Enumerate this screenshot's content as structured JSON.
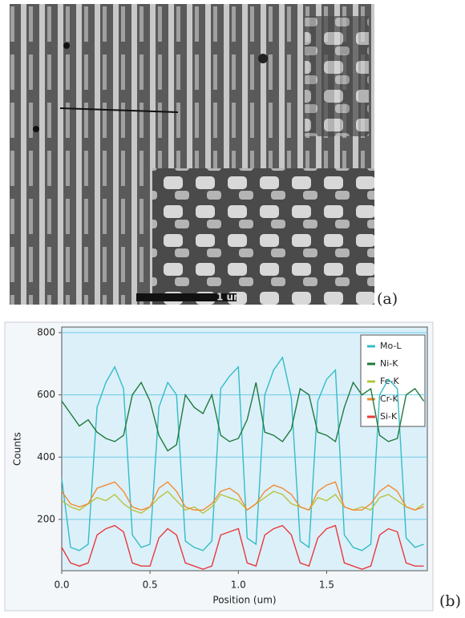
{
  "panel_labels": [
    "(a)",
    "(b)"
  ],
  "image": {
    "scale_bar_label": "1 um"
  },
  "chart_data": {
    "type": "line",
    "xlabel": "Position (um)",
    "ylabel": "Counts",
    "x": [
      0,
      0.05,
      0.1,
      0.15,
      0.2,
      0.25,
      0.3,
      0.35,
      0.4,
      0.45,
      0.5,
      0.55,
      0.6,
      0.65,
      0.7,
      0.75,
      0.8,
      0.85,
      0.9,
      0.95,
      1.0,
      1.05,
      1.1,
      1.15,
      1.2,
      1.25,
      1.3,
      1.35,
      1.4,
      1.45,
      1.5,
      1.55,
      1.6,
      1.65,
      1.7,
      1.75,
      1.8,
      1.85,
      1.9,
      1.95,
      2.0,
      2.05
    ],
    "series": [
      {
        "name": "Mo-L",
        "color": "#35bcc4",
        "values": [
          330,
          110,
          100,
          120,
          560,
          640,
          690,
          620,
          150,
          110,
          120,
          560,
          640,
          600,
          130,
          110,
          100,
          130,
          620,
          660,
          690,
          140,
          120,
          600,
          680,
          720,
          590,
          130,
          110,
          580,
          650,
          680,
          150,
          110,
          100,
          120,
          600,
          650,
          620,
          140,
          110,
          120
        ]
      },
      {
        "name": "Ni-K",
        "color": "#1f7a3c",
        "values": [
          580,
          540,
          500,
          520,
          480,
          460,
          450,
          470,
          600,
          640,
          580,
          470,
          420,
          440,
          600,
          560,
          540,
          600,
          470,
          450,
          460,
          520,
          640,
          480,
          470,
          450,
          490,
          620,
          600,
          480,
          470,
          450,
          560,
          640,
          600,
          620,
          470,
          450,
          460,
          600,
          620,
          580
        ]
      },
      {
        "name": "Fe-K",
        "color": "#b7c43c",
        "values": [
          260,
          240,
          230,
          250,
          270,
          260,
          280,
          250,
          230,
          220,
          240,
          270,
          290,
          260,
          230,
          240,
          220,
          240,
          280,
          270,
          260,
          230,
          250,
          270,
          290,
          280,
          250,
          240,
          230,
          270,
          260,
          280,
          240,
          230,
          240,
          230,
          270,
          280,
          260,
          240,
          230,
          250
        ]
      },
      {
        "name": "Cr-K",
        "color": "#f28a32",
        "values": [
          290,
          250,
          240,
          250,
          300,
          310,
          320,
          290,
          240,
          230,
          240,
          300,
          320,
          290,
          240,
          230,
          230,
          250,
          290,
          300,
          280,
          230,
          250,
          290,
          310,
          300,
          280,
          240,
          230,
          290,
          310,
          320,
          240,
          230,
          230,
          250,
          290,
          310,
          290,
          240,
          230,
          240
        ]
      },
      {
        "name": "Si-K",
        "color": "#e8393a",
        "values": [
          110,
          60,
          50,
          60,
          150,
          170,
          180,
          160,
          60,
          50,
          50,
          140,
          170,
          150,
          60,
          50,
          40,
          50,
          150,
          160,
          170,
          60,
          50,
          150,
          170,
          180,
          150,
          60,
          50,
          140,
          170,
          180,
          60,
          50,
          40,
          50,
          150,
          170,
          160,
          60,
          50,
          50
        ]
      }
    ],
    "xlim": [
      0,
      2.07
    ],
    "ylim": [
      35,
      818
    ],
    "xticks": [
      {
        "value": 0,
        "label": "0.0"
      },
      {
        "value": 0.5,
        "label": "0.5"
      },
      {
        "value": 1,
        "label": "1.0"
      },
      {
        "value": 1.5,
        "label": "1.5"
      }
    ],
    "yticks": [
      200,
      400,
      600,
      800
    ],
    "grid": "y",
    "legend": "upper right"
  }
}
